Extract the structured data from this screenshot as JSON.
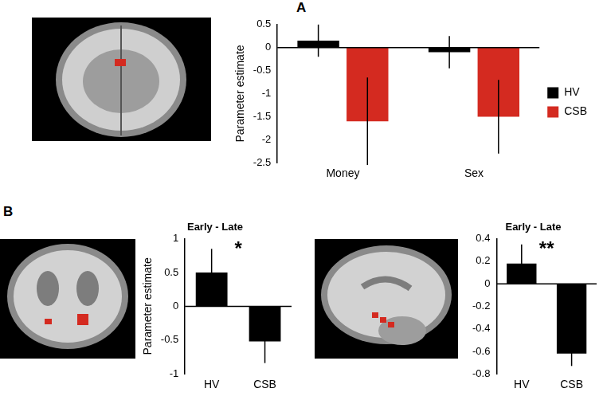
{
  "panel_labels": [
    "A",
    "B"
  ],
  "chart_data": [
    {
      "type": "bar",
      "categories": [
        "Money",
        "Sex"
      ],
      "series": [
        {
          "name": "HV",
          "color": "#000000",
          "values": [
            0.15,
            -0.1
          ],
          "errors": [
            0.35,
            0.35
          ]
        },
        {
          "name": "CSB",
          "color": "#d42a20",
          "values": [
            -1.6,
            -1.5
          ],
          "errors": [
            0.95,
            0.8
          ]
        }
      ],
      "y_label": "Parameter estimate",
      "ylim": [
        -2.5,
        0.5
      ],
      "yticks": [
        -2.5,
        -2,
        -1.5,
        -1,
        -0.5,
        0,
        0.5
      ],
      "legend": "right",
      "grid": false
    },
    {
      "type": "bar",
      "title": "Early - Late",
      "categories": [
        "HV",
        "CSB"
      ],
      "values": [
        0.5,
        -0.52
      ],
      "errors": [
        0.35,
        0.32
      ],
      "color": "#000000",
      "y_label": "Parameter estimate",
      "ylim": [
        -1,
        1
      ],
      "yticks": [
        -1,
        -0.5,
        0,
        0.5,
        1
      ],
      "annotations": [
        "*"
      ],
      "grid": false
    },
    {
      "type": "bar",
      "title": "Early - Late",
      "categories": [
        "HV",
        "CSB"
      ],
      "values": [
        0.18,
        -0.62
      ],
      "errors": [
        0.17,
        0.11
      ],
      "color": "#000000",
      "ylim": [
        -0.8,
        0.4
      ],
      "yticks": [
        -0.8,
        -0.6,
        -0.4,
        -0.2,
        0,
        0.2,
        0.4
      ],
      "annotations": [
        "**"
      ],
      "grid": false
    }
  ]
}
